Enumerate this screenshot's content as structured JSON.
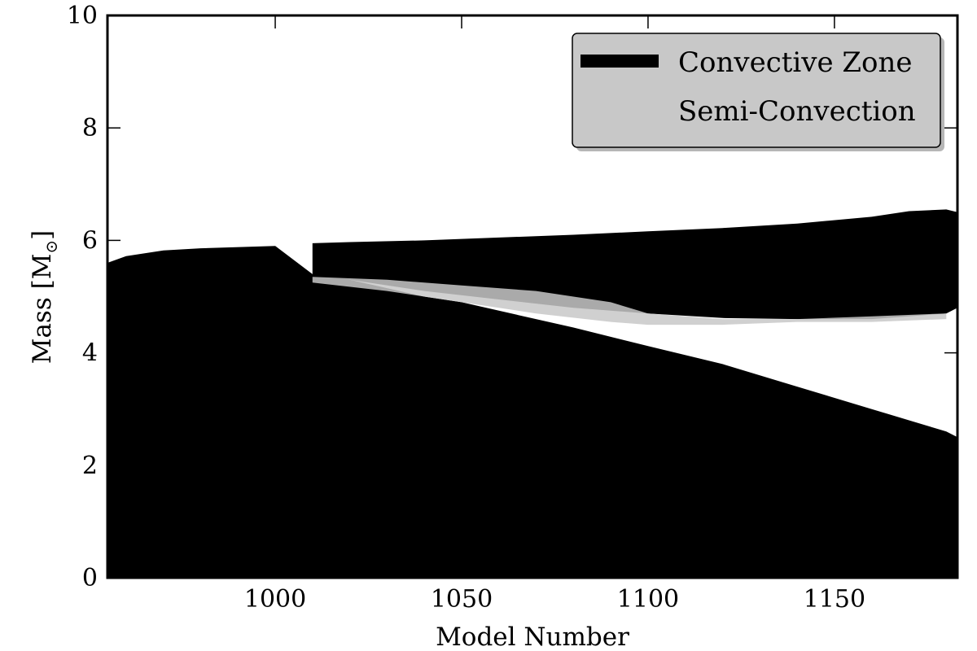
{
  "chart_data": {
    "type": "area",
    "xlabel": "Model Number",
    "ylabel_prefix": "Mass [M",
    "ylabel_sub": "⊙",
    "ylabel_suffix": "]",
    "xlim": [
      955,
      1183
    ],
    "ylim": [
      0,
      10
    ],
    "x_ticks": [
      1000,
      1050,
      1100,
      1150
    ],
    "x_tick_labels": [
      "1000",
      "1050",
      "1100",
      "1150"
    ],
    "y_ticks": [
      0,
      2,
      4,
      6,
      8,
      10
    ],
    "y_tick_labels": [
      "0",
      "2",
      "4",
      "6",
      "8",
      "10"
    ],
    "grid": false,
    "legend_position": "top-right",
    "legend": [
      {
        "label": "Convective Zone",
        "color": "#000000"
      },
      {
        "label": "Semi-Convection",
        "color": "#c8c8c8"
      }
    ],
    "series": [
      {
        "name": "Convective Zone",
        "color": "#000000",
        "band": "core",
        "x": [
          955,
          960,
          970,
          980,
          1000,
          1010,
          1020,
          1030,
          1040,
          1050,
          1060,
          1080,
          1100,
          1120,
          1140,
          1160,
          1170,
          1180,
          1183
        ],
        "y_lower": [
          0,
          0,
          0,
          0,
          0,
          0,
          0,
          0,
          0,
          0,
          0,
          0,
          0,
          0,
          0,
          0,
          0,
          0,
          0
        ],
        "y_upper": [
          5.6,
          5.72,
          5.82,
          5.86,
          5.9,
          5.4,
          5.3,
          5.15,
          5.0,
          4.9,
          4.75,
          4.45,
          4.12,
          3.8,
          3.4,
          3.0,
          2.8,
          2.6,
          2.5
        ]
      },
      {
        "name": "Convective Zone",
        "color": "#000000",
        "band": "shell",
        "x": [
          1010,
          1020,
          1040,
          1060,
          1080,
          1100,
          1120,
          1140,
          1160,
          1170,
          1180,
          1183
        ],
        "y_lower": [
          5.35,
          5.3,
          5.1,
          4.95,
          4.8,
          4.7,
          4.62,
          4.6,
          4.6,
          4.65,
          4.7,
          4.8
        ],
        "y_upper": [
          5.95,
          5.97,
          6.0,
          6.05,
          6.1,
          6.16,
          6.22,
          6.3,
          6.42,
          6.52,
          6.55,
          6.5
        ]
      },
      {
        "name": "Semi-Convection",
        "color": "#c8c8c8",
        "band": "interface",
        "x": [
          1010,
          1030,
          1050,
          1070,
          1090,
          1100,
          1120,
          1140,
          1160,
          1180
        ],
        "y_lower": [
          5.25,
          5.1,
          4.9,
          4.7,
          4.55,
          4.5,
          4.5,
          4.55,
          4.55,
          4.6
        ],
        "y_upper": [
          5.35,
          5.3,
          5.2,
          5.1,
          4.9,
          4.7,
          4.6,
          4.6,
          4.65,
          4.7
        ]
      }
    ]
  }
}
